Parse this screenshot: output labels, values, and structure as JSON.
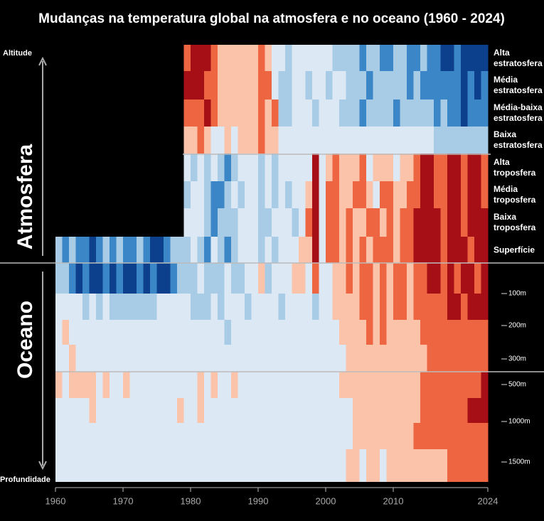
{
  "chart_data": {
    "type": "heatmap",
    "title": "Mudanças na temperatura global na atmosfera e no oceano (1960 - 2024)",
    "top_label": "Altitude",
    "bottom_label": "Profundidade",
    "section_labels": [
      "Atmosfera",
      "Oceano"
    ],
    "xlim": [
      1960,
      2024
    ],
    "xticks": [
      1960,
      1970,
      1980,
      1990,
      2000,
      2010,
      2024
    ],
    "x": [
      1960,
      1961,
      1962,
      1963,
      1964,
      1965,
      1966,
      1967,
      1968,
      1969,
      1970,
      1971,
      1972,
      1973,
      1974,
      1975,
      1976,
      1977,
      1978,
      1979,
      1980,
      1981,
      1982,
      1983,
      1984,
      1985,
      1986,
      1987,
      1988,
      1989,
      1990,
      1991,
      1992,
      1993,
      1994,
      1995,
      1996,
      1997,
      1998,
      1999,
      2000,
      2001,
      2002,
      2003,
      2004,
      2005,
      2006,
      2007,
      2008,
      2009,
      2010,
      2011,
      2012,
      2013,
      2014,
      2015,
      2016,
      2017,
      2018,
      2019,
      2020,
      2021,
      2022,
      2023
    ],
    "colorscale": [
      {
        "value": -3,
        "color": "#0c3f8c"
      },
      {
        "value": -2,
        "color": "#3b86c7"
      },
      {
        "value": -1,
        "color": "#a8cbe6"
      },
      {
        "value": 0,
        "color": "#dce9f5"
      },
      {
        "value": 1,
        "color": "#fcc3ab"
      },
      {
        "value": 2,
        "color": "#ee6541"
      },
      {
        "value": 3,
        "color": "#a50f15"
      }
    ],
    "depth_labels": [
      "100m",
      "200m",
      "300m",
      "500m",
      "1000m",
      "1500m"
    ],
    "rows": [
      {
        "label": "Alta estratosfera",
        "values": [
          null,
          null,
          null,
          null,
          null,
          null,
          null,
          null,
          null,
          null,
          null,
          null,
          null,
          null,
          null,
          null,
          null,
          null,
          null,
          2,
          3,
          3,
          3,
          2,
          1,
          1,
          1,
          1,
          1,
          1,
          2,
          1,
          0,
          0,
          -1,
          0,
          0,
          0,
          0,
          0,
          0,
          -1,
          -1,
          -1,
          -1,
          -2,
          -1,
          -1,
          -2,
          -2,
          -1,
          -1,
          -2,
          -2,
          -1,
          -2,
          -2,
          -3,
          -3,
          -2,
          -3,
          -3,
          -3,
          -3
        ]
      },
      {
        "label": "Média estratosfera",
        "values": [
          null,
          null,
          null,
          null,
          null,
          null,
          null,
          null,
          null,
          null,
          null,
          null,
          null,
          null,
          null,
          null,
          null,
          null,
          null,
          3,
          3,
          3,
          2,
          2,
          1,
          1,
          1,
          1,
          1,
          1,
          2,
          2,
          0,
          -1,
          -1,
          0,
          0,
          -1,
          0,
          0,
          -1,
          0,
          0,
          -1,
          -1,
          -1,
          -2,
          -1,
          -1,
          -1,
          -1,
          -1,
          -2,
          -1,
          -2,
          -2,
          -2,
          -2,
          -2,
          -2,
          -3,
          -2,
          -3,
          -2
        ]
      },
      {
        "label": "Média-baixa estratosfera",
        "values": [
          null,
          null,
          null,
          null,
          null,
          null,
          null,
          null,
          null,
          null,
          null,
          null,
          null,
          null,
          null,
          null,
          null,
          null,
          null,
          2,
          2,
          2,
          3,
          2,
          1,
          1,
          1,
          1,
          1,
          1,
          2,
          1,
          2,
          -1,
          -1,
          0,
          0,
          0,
          -1,
          0,
          0,
          0,
          -1,
          -1,
          -1,
          -2,
          -1,
          -1,
          -1,
          -1,
          -2,
          -1,
          -1,
          -1,
          -1,
          -1,
          -2,
          -1,
          -2,
          -2,
          -3,
          -2,
          -2,
          -2
        ]
      },
      {
        "label": "Baixa estratosfera",
        "values": [
          null,
          null,
          null,
          null,
          null,
          null,
          null,
          null,
          null,
          null,
          null,
          null,
          null,
          null,
          null,
          null,
          null,
          null,
          null,
          1,
          1,
          2,
          1,
          0,
          0,
          1,
          0,
          1,
          1,
          1,
          2,
          1,
          1,
          0,
          0,
          0,
          0,
          0,
          0,
          0,
          0,
          0,
          0,
          0,
          0,
          0,
          0,
          0,
          0,
          0,
          0,
          0,
          0,
          0,
          0,
          0,
          -1,
          -1,
          -1,
          -1,
          -1,
          -1,
          -1,
          -1
        ]
      },
      {
        "label": "Alta troposfera",
        "values": [
          null,
          null,
          null,
          null,
          null,
          null,
          null,
          null,
          null,
          null,
          null,
          null,
          null,
          null,
          null,
          null,
          null,
          null,
          null,
          0,
          -1,
          0,
          -1,
          0,
          -1,
          -2,
          -1,
          0,
          0,
          0,
          -1,
          0,
          -1,
          0,
          0,
          0,
          0,
          0,
          3,
          0,
          1,
          2,
          1,
          1,
          1,
          2,
          0,
          1,
          1,
          1,
          0,
          1,
          1,
          2,
          3,
          3,
          2,
          2,
          3,
          3,
          2,
          3,
          3,
          2
        ]
      },
      {
        "label": "Média troposfera",
        "values": [
          null,
          null,
          null,
          null,
          null,
          null,
          null,
          null,
          null,
          null,
          null,
          null,
          null,
          null,
          null,
          null,
          null,
          null,
          null,
          -1,
          0,
          0,
          -1,
          -2,
          -2,
          -1,
          0,
          -1,
          0,
          0,
          -1,
          0,
          -1,
          0,
          -1,
          0,
          0,
          1,
          3,
          0,
          2,
          2,
          1,
          1,
          2,
          2,
          1,
          0,
          2,
          2,
          1,
          1,
          2,
          2,
          3,
          3,
          2,
          2,
          3,
          3,
          2,
          3,
          3,
          2
        ]
      },
      {
        "label": "Baixa troposfera",
        "values": [
          null,
          null,
          null,
          null,
          null,
          null,
          null,
          null,
          null,
          null,
          null,
          null,
          null,
          null,
          null,
          null,
          null,
          null,
          null,
          0,
          0,
          0,
          -1,
          -2,
          -1,
          -1,
          -1,
          0,
          0,
          0,
          -1,
          -1,
          0,
          0,
          0,
          -1,
          0,
          2,
          3,
          0,
          2,
          2,
          1,
          2,
          1,
          1,
          2,
          2,
          1,
          2,
          1,
          2,
          2,
          3,
          3,
          3,
          3,
          2,
          3,
          3,
          2,
          3,
          3,
          3
        ]
      },
      {
        "label": "Superfície",
        "values": [
          -1,
          -2,
          -1,
          -2,
          -2,
          -3,
          -2,
          -1,
          -2,
          -1,
          -2,
          -2,
          -1,
          -2,
          -3,
          -3,
          -2,
          -1,
          -1,
          -1,
          0,
          -1,
          -2,
          0,
          -1,
          -2,
          -1,
          0,
          0,
          0,
          -1,
          0,
          -1,
          0,
          0,
          0,
          1,
          1,
          3,
          0,
          2,
          2,
          1,
          2,
          1,
          2,
          1,
          2,
          2,
          2,
          1,
          2,
          2,
          3,
          3,
          3,
          3,
          2,
          3,
          3,
          3,
          2,
          3,
          3
        ]
      },
      {
        "values": [
          -1,
          -1,
          -2,
          -3,
          -2,
          -3,
          -3,
          -2,
          -3,
          -2,
          -3,
          -3,
          -2,
          -3,
          -2,
          -3,
          -3,
          -2,
          -1,
          -1,
          -1,
          0,
          -1,
          -1,
          -1,
          0,
          -1,
          -1,
          0,
          0,
          1,
          -1,
          0,
          0,
          0,
          1,
          1,
          0,
          2,
          0,
          0,
          1,
          1,
          2,
          1,
          2,
          2,
          1,
          2,
          1,
          2,
          2,
          1,
          2,
          2,
          3,
          3,
          2,
          3,
          2,
          3,
          3,
          2,
          3
        ]
      },
      {
        "values": [
          0,
          0,
          0,
          0,
          -1,
          0,
          -1,
          0,
          -1,
          -1,
          -1,
          -1,
          -1,
          -1,
          -1,
          0,
          0,
          0,
          0,
          0,
          -1,
          -1,
          -1,
          0,
          -1,
          0,
          0,
          0,
          -1,
          0,
          0,
          0,
          0,
          -1,
          0,
          0,
          0,
          0,
          -1,
          0,
          0,
          1,
          1,
          1,
          1,
          2,
          2,
          1,
          2,
          1,
          2,
          2,
          1,
          2,
          2,
          2,
          2,
          2,
          3,
          3,
          2,
          3,
          3,
          3
        ]
      },
      {
        "values": [
          0,
          1,
          0,
          0,
          0,
          0,
          0,
          0,
          0,
          0,
          0,
          0,
          0,
          0,
          0,
          0,
          0,
          0,
          0,
          0,
          0,
          0,
          0,
          0,
          0,
          -1,
          0,
          0,
          0,
          0,
          0,
          0,
          0,
          0,
          0,
          0,
          0,
          0,
          0,
          0,
          0,
          0,
          1,
          1,
          1,
          1,
          2,
          1,
          2,
          1,
          1,
          1,
          1,
          1,
          2,
          2,
          2,
          2,
          2,
          2,
          2,
          2,
          2,
          2
        ]
      },
      {
        "values": [
          0,
          0,
          1,
          0,
          0,
          0,
          0,
          0,
          0,
          0,
          0,
          0,
          0,
          0,
          0,
          0,
          0,
          0,
          0,
          0,
          0,
          0,
          0,
          0,
          0,
          0,
          0,
          0,
          0,
          0,
          0,
          0,
          0,
          0,
          0,
          0,
          0,
          0,
          0,
          0,
          0,
          0,
          0,
          1,
          1,
          1,
          1,
          1,
          1,
          1,
          1,
          1,
          1,
          1,
          1,
          2,
          2,
          2,
          2,
          2,
          2,
          2,
          2,
          2
        ]
      },
      {
        "values": [
          1,
          0,
          1,
          1,
          1,
          1,
          0,
          1,
          0,
          0,
          1,
          0,
          0,
          0,
          0,
          0,
          0,
          0,
          0,
          0,
          0,
          1,
          0,
          1,
          0,
          0,
          1,
          0,
          0,
          0,
          0,
          0,
          0,
          0,
          0,
          0,
          0,
          0,
          0,
          0,
          0,
          0,
          1,
          1,
          1,
          1,
          1,
          1,
          1,
          1,
          1,
          1,
          1,
          1,
          2,
          2,
          2,
          2,
          2,
          2,
          2,
          2,
          2,
          3
        ]
      },
      {
        "values": [
          0,
          0,
          0,
          0,
          0,
          1,
          0,
          0,
          0,
          0,
          0,
          0,
          0,
          0,
          0,
          0,
          0,
          0,
          1,
          0,
          0,
          1,
          0,
          0,
          0,
          0,
          0,
          0,
          0,
          0,
          0,
          0,
          0,
          0,
          0,
          0,
          0,
          0,
          0,
          0,
          0,
          0,
          0,
          0,
          1,
          1,
          1,
          1,
          1,
          1,
          1,
          1,
          1,
          1,
          2,
          2,
          2,
          2,
          2,
          2,
          2,
          3,
          3,
          3
        ]
      },
      {
        "values": [
          0,
          0,
          0,
          0,
          0,
          0,
          0,
          0,
          0,
          0,
          0,
          0,
          0,
          0,
          0,
          0,
          0,
          0,
          0,
          0,
          0,
          0,
          0,
          0,
          0,
          0,
          0,
          0,
          0,
          0,
          0,
          0,
          0,
          0,
          0,
          0,
          0,
          0,
          0,
          0,
          0,
          0,
          0,
          0,
          1,
          1,
          1,
          1,
          1,
          1,
          1,
          1,
          1,
          2,
          2,
          2,
          2,
          2,
          2,
          2,
          2,
          2,
          2,
          2
        ]
      },
      {
        "values": [
          0,
          0,
          0,
          0,
          0,
          0,
          0,
          0,
          0,
          0,
          0,
          0,
          0,
          0,
          0,
          0,
          0,
          0,
          0,
          0,
          0,
          0,
          0,
          0,
          0,
          0,
          0,
          0,
          0,
          0,
          0,
          0,
          0,
          0,
          0,
          0,
          0,
          0,
          0,
          0,
          0,
          0,
          0,
          1,
          1,
          0,
          1,
          1,
          0,
          1,
          1,
          1,
          1,
          1,
          1,
          1,
          1,
          1,
          2,
          2,
          2,
          2,
          2,
          2
        ]
      }
    ]
  }
}
